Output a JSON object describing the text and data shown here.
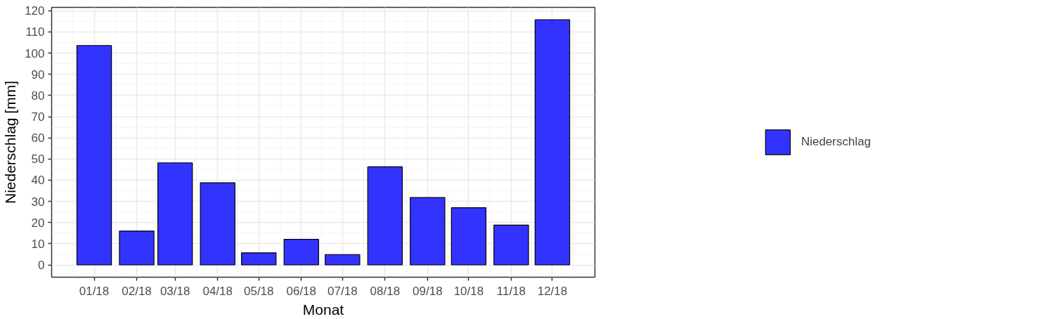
{
  "chart_data": {
    "type": "bar",
    "xlabel": "Monat",
    "ylabel": "Niederschlag [mm]",
    "x": [
      "2018-01-01",
      "2018-02-01",
      "2018-03-01",
      "2018-04-01",
      "2018-05-01",
      "2018-06-01",
      "2018-07-01",
      "2018-08-01",
      "2018-09-01",
      "2018-10-01",
      "2018-11-01",
      "2018-12-01"
    ],
    "series": [
      {
        "name": "Niederschlag",
        "color": "#3333ff",
        "values": [
          103.6,
          16.0,
          48.2,
          38.8,
          5.7,
          12.1,
          4.9,
          46.3,
          31.8,
          27.0,
          18.8,
          115.8
        ]
      }
    ],
    "xlim": [
      "2017-12-01",
      "2019-01-01"
    ],
    "xticks": [
      {
        "value": "2018-01-01",
        "label": "01/18"
      },
      {
        "value": "2018-02-01",
        "label": "02/18"
      },
      {
        "value": "2018-03-01",
        "label": "03/18"
      },
      {
        "value": "2018-04-01",
        "label": "04/18"
      },
      {
        "value": "2018-05-01",
        "label": "05/18"
      },
      {
        "value": "2018-06-01",
        "label": "06/18"
      },
      {
        "value": "2018-07-01",
        "label": "07/18"
      },
      {
        "value": "2018-08-01",
        "label": "08/18"
      },
      {
        "value": "2018-09-01",
        "label": "09/18"
      },
      {
        "value": "2018-10-01",
        "label": "10/18"
      },
      {
        "value": "2018-11-01",
        "label": "11/18"
      },
      {
        "value": "2018-12-01",
        "label": "12/18"
      }
    ],
    "ylim": [
      -5.8,
      121.6
    ],
    "yticks": [
      0,
      10,
      20,
      30,
      40,
      50,
      60,
      70,
      80,
      90,
      100,
      110,
      120
    ],
    "grid": true,
    "legend": "right"
  }
}
